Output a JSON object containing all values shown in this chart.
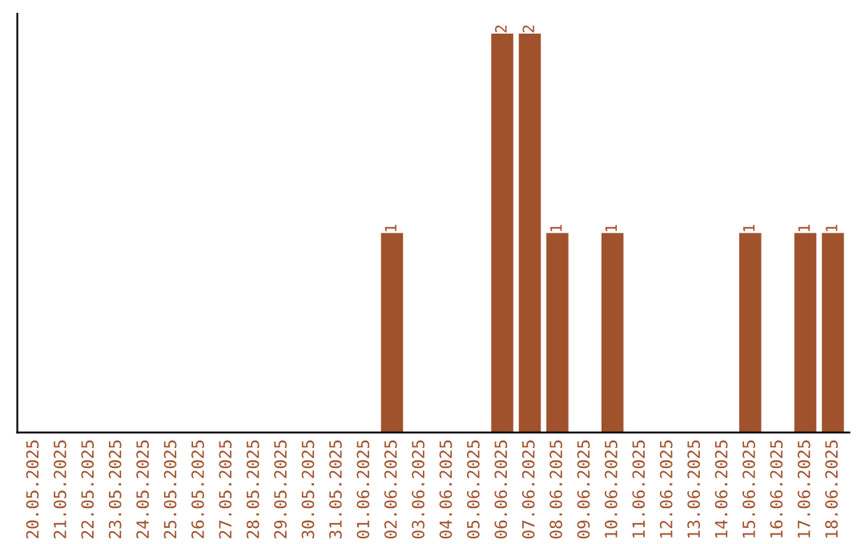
{
  "chart_data": {
    "type": "bar",
    "categories": [
      "20.05.2025",
      "21.05.2025",
      "22.05.2025",
      "23.05.2025",
      "24.05.2025",
      "25.05.2025",
      "26.05.2025",
      "27.05.2025",
      "28.05.2025",
      "29.05.2025",
      "30.05.2025",
      "31.05.2025",
      "01.06.2025",
      "02.06.2025",
      "03.06.2025",
      "04.06.2025",
      "05.06.2025",
      "06.06.2025",
      "07.06.2025",
      "08.06.2025",
      "09.06.2025",
      "10.06.2025",
      "11.06.2025",
      "12.06.2025",
      "13.06.2025",
      "14.06.2025",
      "15.06.2025",
      "16.06.2025",
      "17.06.2025",
      "18.06.2025"
    ],
    "values": [
      null,
      null,
      null,
      null,
      null,
      null,
      null,
      null,
      null,
      null,
      null,
      null,
      null,
      1,
      null,
      null,
      null,
      2,
      2,
      1,
      null,
      1,
      null,
      null,
      null,
      null,
      1,
      null,
      1,
      1
    ],
    "data_labels": true,
    "color": "#a0522d",
    "tick_labels": "x"
  }
}
